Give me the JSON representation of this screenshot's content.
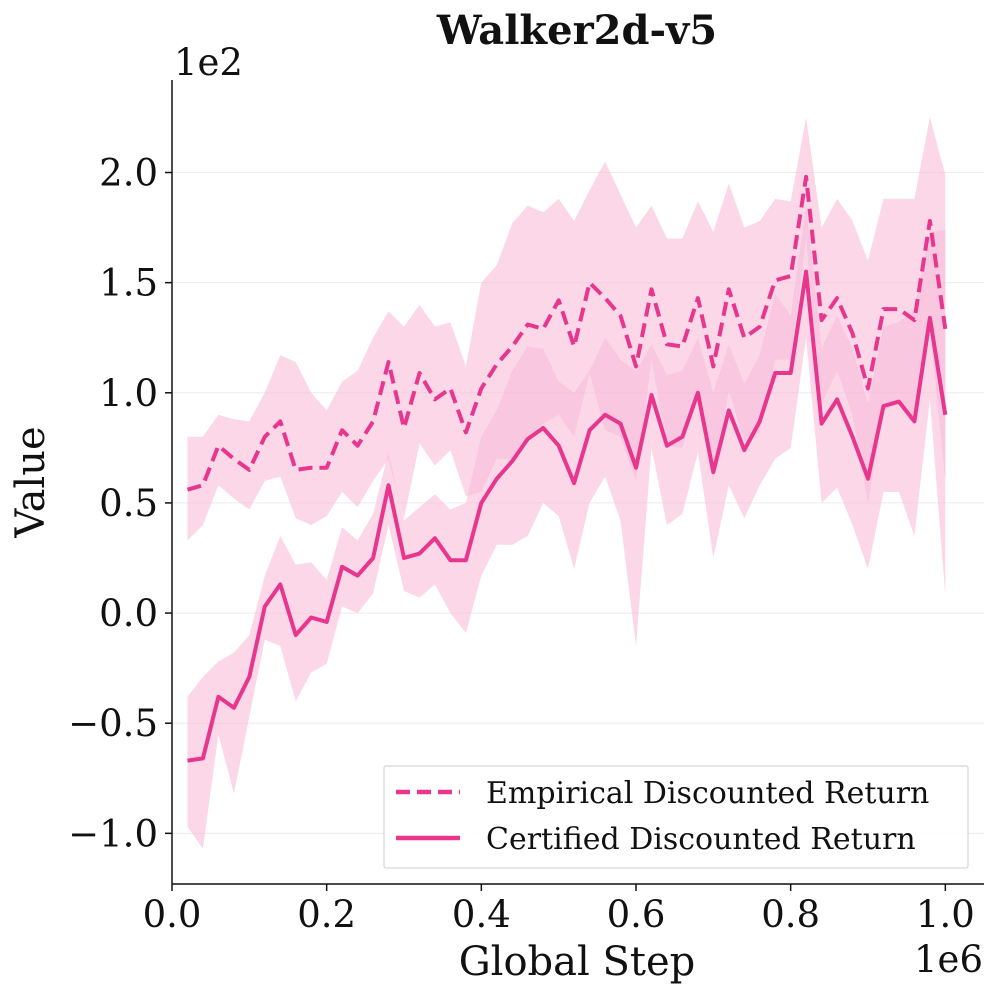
{
  "chart_data": {
    "type": "line",
    "title": "Walker2d-v5",
    "xlabel": "Global Step",
    "ylabel": "Value",
    "x_multiplier": "1e6",
    "y_multiplier": "1e2",
    "xlim": [
      0.0,
      1.05
    ],
    "ylim": [
      -1.23,
      2.42
    ],
    "x_ticks": [
      0.0,
      0.2,
      0.4,
      0.6,
      0.8,
      1.0
    ],
    "x_tick_labels": [
      "0.0",
      "0.2",
      "0.4",
      "0.6",
      "0.8",
      "1.0"
    ],
    "y_ticks": [
      -1.0,
      -0.5,
      0.0,
      0.5,
      1.0,
      1.5,
      2.0
    ],
    "y_tick_labels": [
      "−1.0",
      "−0.5",
      "0.0",
      "0.5",
      "1.0",
      "1.5",
      "2.0"
    ],
    "grid": true,
    "legend_position": "bottom-right",
    "color": "#e8368f",
    "band_color": "#f8bcd8",
    "x": [
      0.02,
      0.04,
      0.06,
      0.08,
      0.1,
      0.12,
      0.14,
      0.16,
      0.18,
      0.2,
      0.22,
      0.24,
      0.26,
      0.28,
      0.3,
      0.32,
      0.34,
      0.36,
      0.38,
      0.4,
      0.42,
      0.44,
      0.46,
      0.48,
      0.5,
      0.52,
      0.54,
      0.56,
      0.58,
      0.6,
      0.62,
      0.64,
      0.66,
      0.68,
      0.7,
      0.72,
      0.74,
      0.76,
      0.78,
      0.8,
      0.82,
      0.84,
      0.86,
      0.88,
      0.9,
      0.92,
      0.94,
      0.96,
      0.98,
      1.0
    ],
    "series": [
      {
        "name": "Empirical Discounted Return",
        "style": "dashed",
        "values": [
          0.56,
          0.58,
          0.76,
          0.7,
          0.65,
          0.8,
          0.87,
          0.65,
          0.66,
          0.66,
          0.83,
          0.76,
          0.87,
          1.14,
          0.84,
          1.09,
          0.97,
          1.02,
          0.82,
          1.02,
          1.13,
          1.21,
          1.31,
          1.29,
          1.42,
          1.21,
          1.5,
          1.43,
          1.35,
          1.12,
          1.47,
          1.22,
          1.21,
          1.43,
          1.12,
          1.47,
          1.25,
          1.3,
          1.51,
          1.53,
          1.98,
          1.33,
          1.43,
          1.27,
          1.02,
          1.38,
          1.38,
          1.33,
          1.78,
          1.29
        ],
        "upper": [
          0.8,
          0.8,
          0.9,
          0.88,
          0.87,
          1.0,
          1.17,
          1.14,
          1.0,
          0.92,
          1.05,
          1.1,
          1.25,
          1.37,
          1.3,
          1.4,
          1.3,
          1.32,
          1.12,
          1.5,
          1.58,
          1.77,
          1.85,
          1.82,
          1.88,
          1.78,
          1.92,
          2.05,
          1.9,
          1.75,
          1.85,
          1.7,
          1.7,
          1.87,
          1.73,
          1.95,
          1.75,
          1.78,
          1.88,
          1.87,
          2.25,
          1.75,
          1.88,
          1.78,
          1.6,
          1.88,
          1.88,
          1.88,
          2.25,
          1.99
        ],
        "lower": [
          0.33,
          0.4,
          0.58,
          0.52,
          0.47,
          0.6,
          0.62,
          0.43,
          0.4,
          0.44,
          0.55,
          0.48,
          0.6,
          0.7,
          0.43,
          0.77,
          0.67,
          0.74,
          0.53,
          0.55,
          0.7,
          0.7,
          0.8,
          0.86,
          0.9,
          0.8,
          1.09,
          0.83,
          0.8,
          0.6,
          1.15,
          0.76,
          0.75,
          1.0,
          0.6,
          1.01,
          0.78,
          0.82,
          1.15,
          1.15,
          1.7,
          0.95,
          1.1,
          0.9,
          0.5,
          0.92,
          0.95,
          0.86,
          1.3,
          0.6
        ]
      },
      {
        "name": "Certified Discounted Return",
        "style": "solid",
        "values": [
          -0.67,
          -0.66,
          -0.38,
          -0.43,
          -0.29,
          0.03,
          0.13,
          -0.1,
          -0.02,
          -0.04,
          0.21,
          0.17,
          0.25,
          0.58,
          0.25,
          0.27,
          0.34,
          0.24,
          0.24,
          0.5,
          0.61,
          0.69,
          0.79,
          0.84,
          0.76,
          0.59,
          0.83,
          0.9,
          0.86,
          0.66,
          0.99,
          0.76,
          0.8,
          1.0,
          0.64,
          0.92,
          0.74,
          0.87,
          1.09,
          1.09,
          1.55,
          0.86,
          0.97,
          0.8,
          0.61,
          0.94,
          0.96,
          0.87,
          1.34,
          0.9
        ],
        "upper": [
          -0.38,
          -0.29,
          -0.22,
          -0.18,
          -0.1,
          0.17,
          0.35,
          0.22,
          0.23,
          0.15,
          0.39,
          0.33,
          0.45,
          0.73,
          0.42,
          0.48,
          0.54,
          0.47,
          0.5,
          0.8,
          0.92,
          1.1,
          1.21,
          1.2,
          1.05,
          1.0,
          1.1,
          1.25,
          1.15,
          1.1,
          1.22,
          1.08,
          1.1,
          1.25,
          1.0,
          1.22,
          1.04,
          1.17,
          1.45,
          1.35,
          1.85,
          1.2,
          1.35,
          1.2,
          0.95,
          1.3,
          1.32,
          1.38,
          1.73,
          1.74
        ],
        "lower": [
          -0.97,
          -1.07,
          -0.55,
          -0.82,
          -0.47,
          -0.12,
          -0.15,
          -0.4,
          -0.27,
          -0.23,
          0.03,
          0.0,
          0.09,
          0.4,
          0.1,
          0.07,
          0.13,
          0.0,
          -0.09,
          0.17,
          0.31,
          0.31,
          0.35,
          0.5,
          0.44,
          0.2,
          0.5,
          0.62,
          0.42,
          -0.15,
          0.75,
          0.4,
          0.45,
          0.73,
          0.25,
          0.58,
          0.43,
          0.58,
          0.7,
          0.75,
          1.25,
          0.5,
          0.57,
          0.4,
          0.2,
          0.55,
          0.55,
          0.35,
          0.97,
          0.08
        ]
      }
    ]
  }
}
